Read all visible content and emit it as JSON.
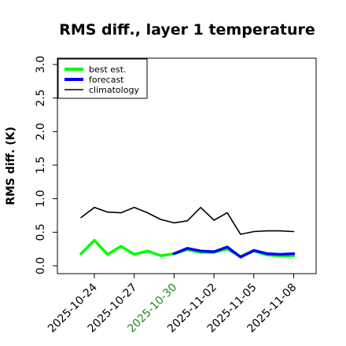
{
  "chart_data": {
    "type": "line",
    "title": "RMS diff., layer 1 temperature",
    "xlabel": "",
    "ylabel": "RMS diff. (K)",
    "xlim": [
      "2025-10-21",
      "2025-11-10"
    ],
    "ylim": [
      0,
      3.0
    ],
    "yticks": [
      "0.0",
      "0.5",
      "1.0",
      "1.5",
      "2.0",
      "2.5",
      "3.0"
    ],
    "xticks": [
      {
        "label": "2025-10-24",
        "date": "2025-10-24",
        "color": "#000000"
      },
      {
        "label": "2025-10-27",
        "date": "2025-10-27",
        "color": "#000000"
      },
      {
        "label": "2025-10-30",
        "date": "2025-10-30",
        "color": "#228B22"
      },
      {
        "label": "2025-11-02",
        "date": "2025-11-02",
        "color": "#000000"
      },
      {
        "label": "2025-11-05",
        "date": "2025-11-05",
        "color": "#000000"
      },
      {
        "label": "2025-11-08",
        "date": "2025-11-08",
        "color": "#000000"
      }
    ],
    "legend_position": "top-left",
    "grid": false,
    "series": [
      {
        "name": "best est.",
        "color": "#00ff00",
        "x": [
          "2025-10-23",
          "2025-10-24",
          "2025-10-25",
          "2025-10-26",
          "2025-10-27",
          "2025-10-28",
          "2025-10-29",
          "2025-10-30",
          "2025-10-31",
          "2025-11-01",
          "2025-11-02",
          "2025-11-03",
          "2025-11-04",
          "2025-11-05",
          "2025-11-06",
          "2025-11-07",
          "2025-11-08"
        ],
        "y": [
          0.18,
          0.38,
          0.17,
          0.29,
          0.17,
          0.22,
          0.15,
          0.18,
          0.24,
          0.2,
          0.2,
          0.25,
          0.14,
          0.22,
          0.16,
          0.15,
          0.15
        ]
      },
      {
        "name": "forecast",
        "color": "#0000ff",
        "x": [
          "2025-10-30",
          "2025-10-31",
          "2025-11-01",
          "2025-11-02",
          "2025-11-03",
          "2025-11-04",
          "2025-11-05",
          "2025-11-06",
          "2025-11-07",
          "2025-11-08"
        ],
        "y": [
          0.18,
          0.26,
          0.22,
          0.21,
          0.28,
          0.13,
          0.23,
          0.18,
          0.17,
          0.18
        ]
      },
      {
        "name": "climatology",
        "color": "#000000",
        "x": [
          "2025-10-23",
          "2025-10-24",
          "2025-10-25",
          "2025-10-26",
          "2025-10-27",
          "2025-10-28",
          "2025-10-29",
          "2025-10-30",
          "2025-10-31",
          "2025-11-01",
          "2025-11-02",
          "2025-11-03",
          "2025-11-04",
          "2025-11-05",
          "2025-11-06",
          "2025-11-07",
          "2025-11-08"
        ],
        "y": [
          0.72,
          0.87,
          0.8,
          0.79,
          0.87,
          0.79,
          0.69,
          0.64,
          0.67,
          0.87,
          0.68,
          0.79,
          0.47,
          0.51,
          0.52,
          0.52,
          0.51
        ]
      }
    ]
  }
}
